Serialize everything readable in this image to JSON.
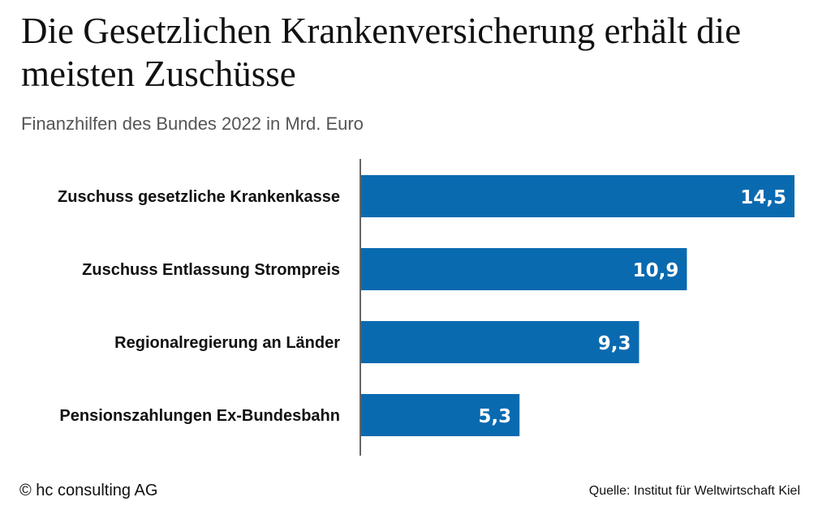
{
  "chart_data": {
    "type": "bar",
    "orientation": "horizontal",
    "title": "Die Gesetzlichen Krankenversicherung erhält die meisten Zuschüsse",
    "subtitle": "Finanzhilfen des Bundes 2022 in Mrd. Euro",
    "categories": [
      "Zuschuss gesetzliche Krankenkasse",
      "Zuschuss Entlassung Strompreis",
      "Regionalregierung an Länder",
      "Pensionszahlungen Ex-Bundesbahn"
    ],
    "values": [
      14.5,
      10.9,
      9.3,
      5.3
    ],
    "value_labels": [
      "14,5",
      "10,9",
      "9,3",
      "5,3"
    ],
    "xlim": [
      0,
      14.5
    ],
    "bar_color": "#0a6ab0",
    "value_label_color": "#ffffff",
    "grid": false,
    "legend": "none"
  },
  "footer": {
    "copyright": "© hc consulting AG",
    "source": "Quelle: Institut für Weltwirtschaft Kiel"
  }
}
